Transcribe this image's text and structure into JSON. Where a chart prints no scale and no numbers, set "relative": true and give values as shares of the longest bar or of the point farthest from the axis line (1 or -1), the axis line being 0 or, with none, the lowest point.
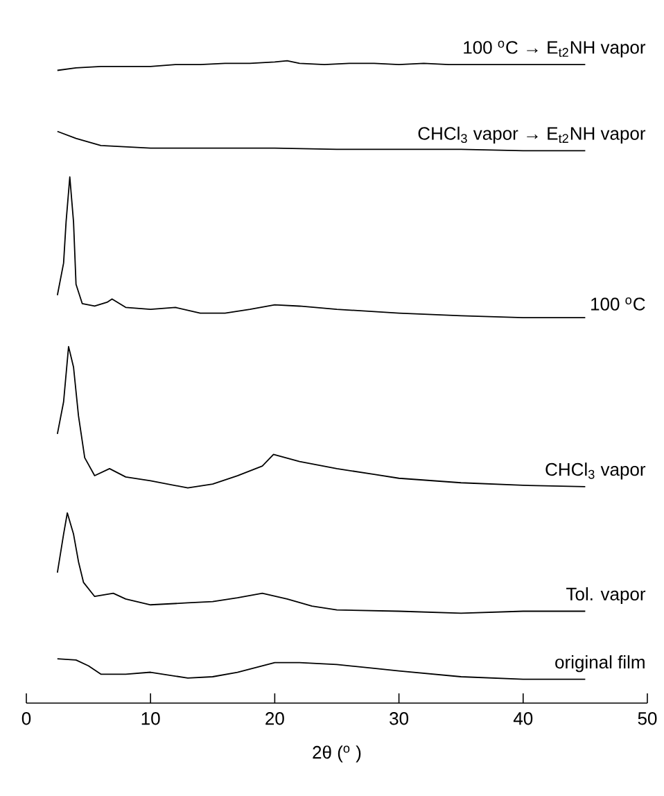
{
  "chart_data": {
    "type": "line",
    "relative": true,
    "xlabel": "2θ ($^{o}$ )",
    "xlim": [
      0,
      50
    ],
    "xticks": [
      0,
      10,
      20,
      30,
      40,
      50
    ],
    "series": [
      {
        "name": "original film",
        "color": "#000000",
        "x": [
          2.5,
          4,
          5,
          6,
          8,
          10,
          13,
          15,
          17,
          20,
          22,
          25,
          28,
          30,
          35,
          40,
          45
        ],
        "values": [
          0.069,
          0.067,
          0.058,
          0.045,
          0.045,
          0.048,
          0.039,
          0.041,
          0.048,
          0.063,
          0.063,
          0.06,
          0.054,
          0.05,
          0.041,
          0.037,
          0.037
        ]
      },
      {
        "name": "Tol. vapor",
        "color": "#000000",
        "x": [
          2.5,
          3.0,
          3.3,
          3.8,
          4.2,
          4.6,
          5.5,
          7,
          8,
          10,
          13,
          15,
          17,
          19,
          21,
          23,
          25,
          30,
          35,
          40,
          45
        ],
        "values": [
          0.203,
          0.263,
          0.296,
          0.263,
          0.22,
          0.188,
          0.166,
          0.171,
          0.162,
          0.153,
          0.156,
          0.158,
          0.164,
          0.171,
          0.162,
          0.151,
          0.145,
          0.143,
          0.14,
          0.143,
          0.143
        ]
      },
      {
        "name": "CHCl$_{3}$ vapor",
        "color": "#000000",
        "x": [
          2.5,
          3.0,
          3.4,
          3.8,
          4.2,
          4.7,
          5.5,
          6.7,
          8,
          10,
          13,
          15,
          17,
          19,
          19.9,
          22,
          25,
          28,
          30,
          35,
          40,
          45
        ],
        "values": [
          0.419,
          0.469,
          0.555,
          0.523,
          0.447,
          0.382,
          0.354,
          0.365,
          0.352,
          0.346,
          0.335,
          0.341,
          0.354,
          0.369,
          0.387,
          0.376,
          0.365,
          0.356,
          0.35,
          0.343,
          0.339,
          0.337
        ]
      },
      {
        "name": "100 $^{o}$C",
        "color": "#000000",
        "x": [
          2.5,
          3.0,
          3.2,
          3.5,
          3.8,
          4.0,
          4.5,
          5.5,
          6.5,
          6.9,
          8,
          10,
          12,
          14,
          16,
          18,
          20,
          22,
          25,
          30,
          35,
          40,
          45
        ],
        "values": [
          0.635,
          0.685,
          0.749,
          0.819,
          0.749,
          0.652,
          0.622,
          0.618,
          0.624,
          0.629,
          0.616,
          0.613,
          0.616,
          0.607,
          0.607,
          0.613,
          0.62,
          0.618,
          0.613,
          0.607,
          0.603,
          0.6,
          0.6
        ]
      },
      {
        "name": "CHCl$_{3}$ vapor → E$_{t2}$NH vapor",
        "color": "#000000",
        "x": [
          2.5,
          4,
          6,
          10,
          15,
          20,
          25,
          30,
          35,
          40,
          45
        ],
        "values": [
          0.89,
          0.879,
          0.868,
          0.864,
          0.864,
          0.864,
          0.862,
          0.862,
          0.862,
          0.86,
          0.86
        ]
      },
      {
        "name": "100 $^{o}$C → E$_{t2}$NH vapor",
        "color": "#000000",
        "x": [
          2.5,
          4,
          6,
          8,
          10,
          12,
          14,
          16,
          18,
          20,
          21,
          22,
          24,
          26,
          28,
          30,
          32,
          34,
          36,
          38,
          40,
          42,
          44,
          45
        ],
        "values": [
          0.985,
          0.989,
          0.991,
          0.991,
          0.991,
          0.994,
          0.994,
          0.996,
          0.996,
          0.998,
          1.0,
          0.996,
          0.994,
          0.996,
          0.996,
          0.994,
          0.996,
          0.994,
          0.994,
          0.994,
          0.994,
          0.994,
          0.994,
          0.994
        ]
      }
    ]
  }
}
